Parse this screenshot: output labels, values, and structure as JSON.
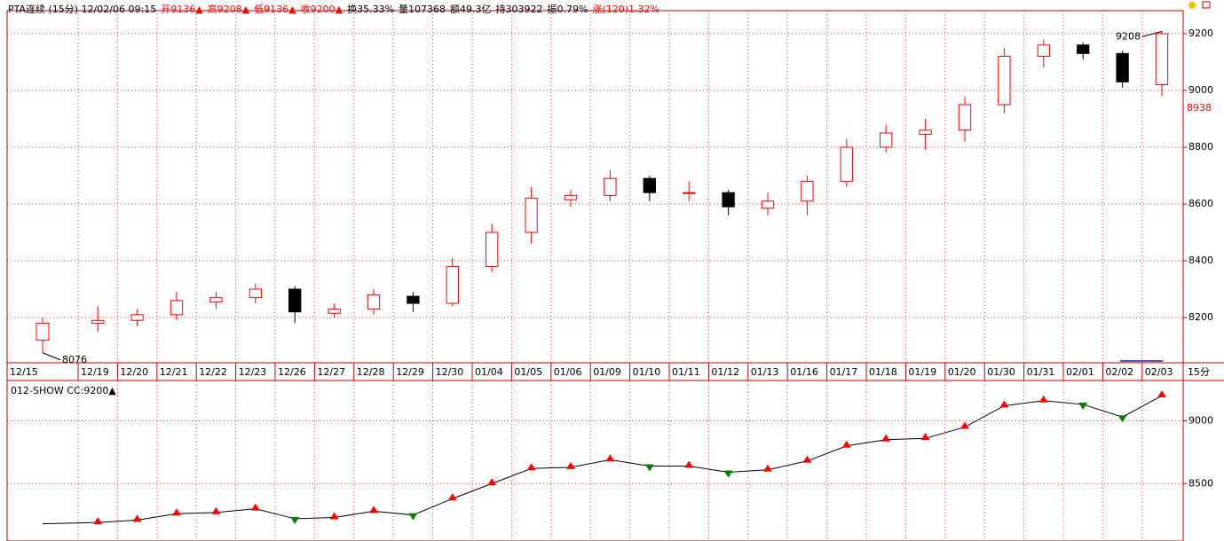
{
  "header": {
    "items": [
      {
        "text": "PTA连续 (15分) 12/02/06 09:15",
        "color": "#000000"
      },
      {
        "text": "开9136▲",
        "color": "#ff0000"
      },
      {
        "text": "高9208▲",
        "color": "#ff0000"
      },
      {
        "text": "低9136▲",
        "color": "#ff0000"
      },
      {
        "text": "收9200▲",
        "color": "#ff0000"
      },
      {
        "text": "换35.33%",
        "color": "#000000"
      },
      {
        "text": "量107368",
        "color": "#000000"
      },
      {
        "text": "额49.3亿",
        "color": "#000000"
      },
      {
        "text": "持303922",
        "color": "#000000"
      },
      {
        "text": "振0.79%",
        "color": "#000000"
      },
      {
        "text": "涨(120)1.32%",
        "color": "#ff0000"
      }
    ]
  },
  "chart_data": [
    {
      "type": "candlestick",
      "categories": [
        "12/15",
        "12/19",
        "12/20",
        "12/21",
        "12/22",
        "12/23",
        "12/26",
        "12/27",
        "12/28",
        "12/29",
        "12/30",
        "01/04",
        "01/05",
        "01/06",
        "01/09",
        "01/10",
        "01/11",
        "01/12",
        "01/13",
        "01/16",
        "01/17",
        "01/18",
        "01/19",
        "01/20",
        "01/30",
        "01/31",
        "02/01",
        "02/02",
        "02/03"
      ],
      "period_label": "15分",
      "open": [
        8120,
        8180,
        8190,
        8210,
        8255,
        8270,
        8300,
        8215,
        8230,
        8275,
        8250,
        8380,
        8500,
        8615,
        8630,
        8690,
        8640,
        8640,
        8585,
        8610,
        8680,
        8800,
        8845,
        8860,
        8950,
        9120,
        9160,
        9130,
        9020
      ],
      "high": [
        8200,
        8240,
        8230,
        8290,
        8290,
        8320,
        8310,
        8250,
        8300,
        8290,
        8410,
        8530,
        8660,
        8650,
        8720,
        8700,
        8680,
        8650,
        8640,
        8700,
        8830,
        8880,
        8900,
        8980,
        9150,
        9180,
        9170,
        9140,
        9208
      ],
      "low": [
        8076,
        8150,
        8170,
        8190,
        8230,
        8250,
        8180,
        8200,
        8210,
        8220,
        8240,
        8360,
        8460,
        8590,
        8610,
        8610,
        8610,
        8560,
        8560,
        8560,
        8660,
        8780,
        8790,
        8820,
        8920,
        9080,
        9110,
        9010,
        8980
      ],
      "close": [
        8180,
        8190,
        8210,
        8260,
        8270,
        8300,
        8220,
        8230,
        8280,
        8250,
        8380,
        8500,
        8620,
        8630,
        8690,
        8640,
        8640,
        8590,
        8610,
        8680,
        8800,
        8850,
        8860,
        8950,
        9120,
        9160,
        9130,
        9030,
        9200
      ],
      "up_color": "#ff0000",
      "down_color": "#000000",
      "ylim": [
        8044,
        9281
      ],
      "yticks": [
        8200,
        8400,
        8600,
        8800,
        9000,
        9200
      ],
      "annotations": [
        {
          "value": 9208,
          "label": "9208"
        },
        {
          "value": 8076,
          "label": "8076"
        }
      ],
      "marker": {
        "value": 8938,
        "label": "8938",
        "color": "#ff0000"
      },
      "grid": true
    },
    {
      "type": "line",
      "title": "012-SHOW CC:9200▲",
      "values": [
        8180,
        8190,
        8210,
        8260,
        8270,
        8300,
        8220,
        8230,
        8280,
        8250,
        8380,
        8500,
        8620,
        8630,
        8690,
        8640,
        8640,
        8590,
        8610,
        8680,
        8800,
        8850,
        8860,
        8950,
        9120,
        9160,
        9130,
        9030,
        9200
      ],
      "color": "#000000",
      "up_color": "#ff0000",
      "down_color": "#008000",
      "ylim": [
        8043,
        9314
      ],
      "yticks": [
        8500,
        9000
      ],
      "grid": true
    }
  ]
}
